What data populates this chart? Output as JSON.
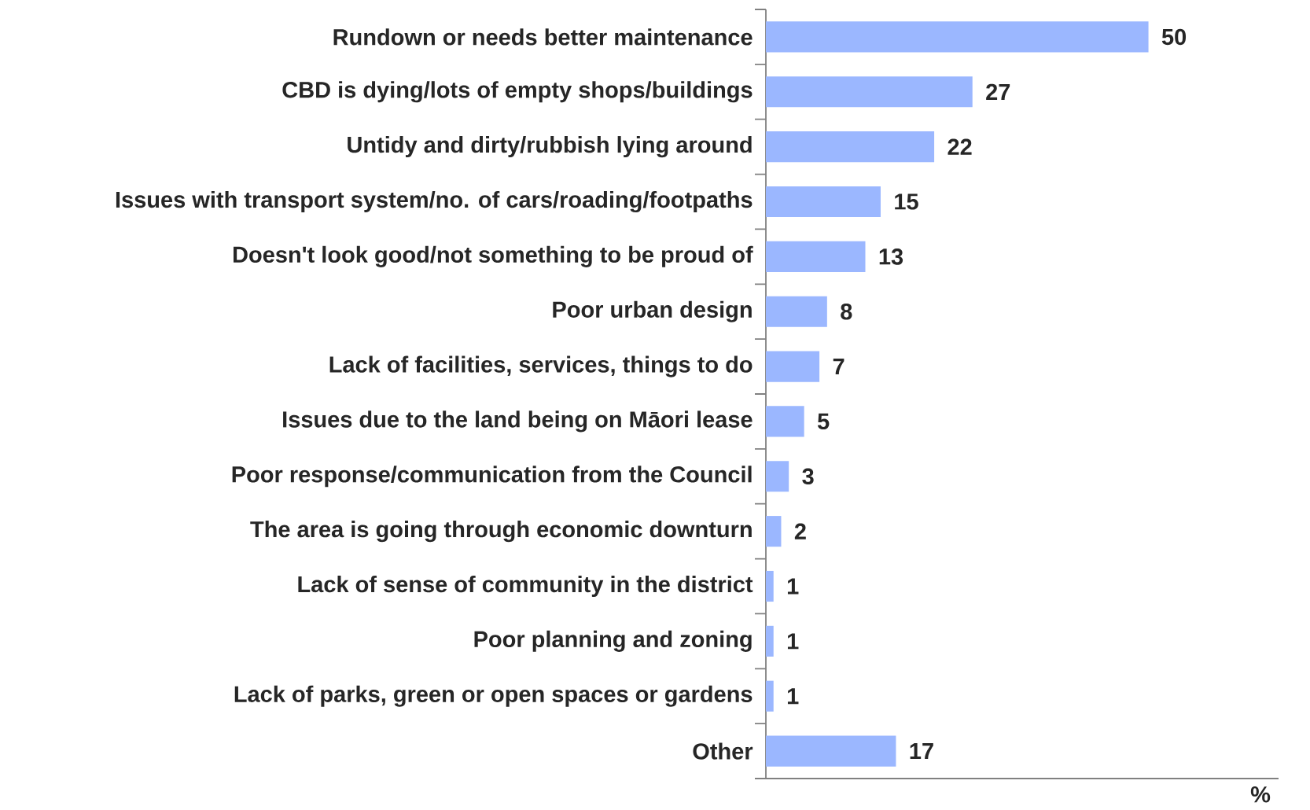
{
  "chart_data": {
    "type": "bar",
    "orientation": "horizontal",
    "xlabel": "%",
    "categories": [
      "Rundown or needs better maintenance",
      "CBD is dying/lots of empty shops/buildings",
      "Untidy and dirty/rubbish lying around",
      "Issues with transport system/no. of cars/roading/footpaths",
      "Doesn't look good/not something to be proud of",
      "Poor urban design",
      "Lack of facilities, services, things to do",
      "Issues due to the land being on Māori lease",
      "Poor response/communication from the Council",
      "The area is going through economic downturn",
      "Lack of sense of community in the district",
      "Poor planning and zoning",
      "Lack of parks, green or open spaces or gardens",
      "Other"
    ],
    "values": [
      50,
      27,
      22,
      15,
      13,
      8,
      7,
      5,
      3,
      2,
      1,
      1,
      1,
      17
    ],
    "color": "#9bb7ff",
    "xlim": [
      0,
      67
    ],
    "data_labels": true,
    "tick_labels": "y"
  }
}
